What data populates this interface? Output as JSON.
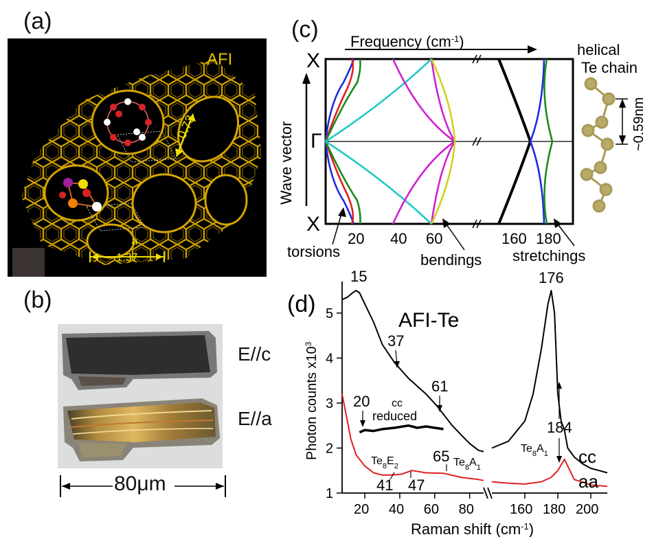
{
  "panels": {
    "a": {
      "label": "(a)",
      "material": "AFI",
      "pore_size": "0.73",
      "lattice_letter": "a",
      "lattice_value": "1.37",
      "colors": {
        "framework": "#d4a500",
        "oxygen": "#d62424",
        "white": "#ffffff",
        "accent": "#f0e000"
      }
    },
    "b": {
      "label": "(b)",
      "pol_c": "E//c",
      "pol_a": "E//a",
      "scale": "80μm"
    },
    "c": {
      "label": "(c)",
      "freq_axis_label": "Frequency  (cm",
      "freq_axis_sup": "-1",
      "freq_axis_close": ")",
      "wave_vector_label": "Wave vector",
      "point_x_top": "X",
      "point_gamma": "Γ",
      "point_x_bottom": "X",
      "ticks": [
        "20",
        "40",
        "60",
        "160",
        "180"
      ],
      "mode_labels": {
        "torsions": "torsions",
        "bendings": "bendings",
        "stretchings": "stretchings"
      },
      "chain_label_1": "helical",
      "chain_label_2": "Te chain",
      "chain_period": "~0.59nm",
      "colors": {
        "blue": "#1a2ee0",
        "red": "#e02020",
        "green": "#1a8a1a",
        "magenta": "#d020d0",
        "cyan": "#20c8c8",
        "yellow": "#d0d020",
        "black": "#000000",
        "bead": "#a89a58"
      }
    },
    "d": {
      "label": "(d)",
      "title": "AFI-Te",
      "ylabel": "Photon counts x10",
      "ylabel_sup": "3",
      "xlabel": "Raman shift (cm",
      "xlabel_sup": "-1",
      "xlabel_close": ")",
      "cc_label": "cc",
      "aa_label": "aa",
      "reduced_label_1": "cc",
      "reduced_label_2": "reduced",
      "te8e2_base": "Te",
      "te8e2_sub": "8",
      "te8e2_mode": "E",
      "te8e2_mode_sub": "2",
      "te8a1_base": "Te",
      "te8a1_sub": "8",
      "te8a1_mode": "A",
      "te8a1_mode_sub": "1",
      "peaks": {
        "p15": "15",
        "p37": "37",
        "p61": "61",
        "p20": "20",
        "p176": "176",
        "p184": "184",
        "p65": "65",
        "p41": "41",
        "p47": "47"
      }
    }
  },
  "chart_data": [
    {
      "type": "line",
      "title": "",
      "xlabel": "Frequency (cm-1)",
      "ylabel": "Wave vector",
      "x_ticks": [
        20,
        40,
        60,
        160,
        180
      ],
      "y_points": [
        "X",
        "Γ",
        "X"
      ],
      "series": []
    },
    {
      "type": "line",
      "title": "AFI-Te",
      "xlabel": "Raman shift (cm-1)",
      "ylabel": "Photon counts x10^3",
      "ylim": [
        1,
        5.7
      ],
      "x_ticks_left": [
        20,
        40,
        60,
        80
      ],
      "x_ticks_right": [
        160,
        180,
        200
      ],
      "y_ticks": [
        1,
        2,
        3,
        4,
        5
      ],
      "series": [
        {
          "name": "cc",
          "x": [
            7,
            10,
            13,
            15,
            17,
            20,
            25,
            30,
            37,
            45,
            55,
            61,
            65,
            70,
            75,
            80,
            85,
            88
          ],
          "y": [
            5.3,
            5.35,
            5.45,
            5.5,
            5.45,
            5.2,
            4.8,
            4.3,
            3.9,
            3.55,
            3.2,
            2.95,
            2.75,
            2.5,
            2.3,
            2.1,
            1.95,
            1.92
          ]
        },
        {
          "name": "cc",
          "x": [
            140,
            150,
            160,
            165,
            170,
            174,
            176,
            178,
            180,
            182,
            184,
            186,
            190,
            195,
            200,
            205,
            210
          ],
          "y": [
            2.0,
            2.15,
            2.6,
            3.2,
            4.2,
            5.2,
            5.5,
            5.0,
            3.2,
            2.6,
            2.4,
            2.0,
            1.8,
            1.65,
            1.55,
            1.5,
            1.45
          ]
        },
        {
          "name": "cc reduced",
          "x": [
            17,
            20,
            25,
            30,
            37,
            45,
            50,
            55,
            60,
            65
          ],
          "y": [
            2.35,
            2.4,
            2.38,
            2.42,
            2.45,
            2.5,
            2.45,
            2.48,
            2.45,
            2.42
          ]
        },
        {
          "name": "aa",
          "x": [
            7,
            9,
            12,
            15,
            20,
            25,
            30,
            35,
            41,
            47,
            55,
            65,
            75,
            85,
            88
          ],
          "y": [
            3.2,
            2.8,
            2.2,
            1.85,
            1.6,
            1.45,
            1.4,
            1.4,
            1.42,
            1.5,
            1.45,
            1.44,
            1.35,
            1.3,
            1.28
          ]
        },
        {
          "name": "aa",
          "x": [
            140,
            150,
            160,
            170,
            176,
            180,
            184,
            186,
            190,
            200,
            210
          ],
          "y": [
            1.25,
            1.22,
            1.2,
            1.25,
            1.35,
            1.5,
            1.75,
            1.6,
            1.3,
            1.18,
            1.15
          ]
        }
      ]
    }
  ]
}
